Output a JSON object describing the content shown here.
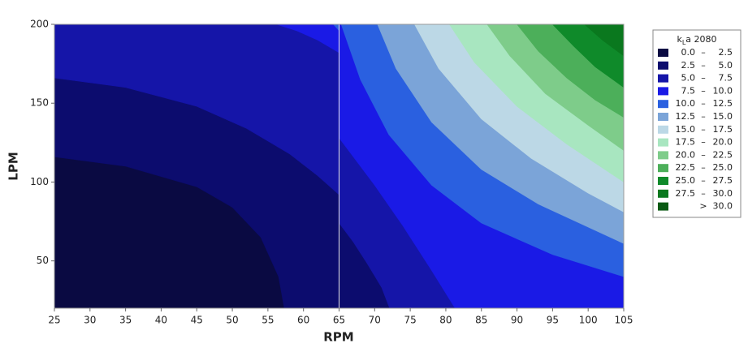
{
  "chart_data": {
    "type": "contour",
    "x_label": "RPM",
    "y_label": "LPM",
    "xlim": [
      25,
      105
    ],
    "ylim": [
      20,
      200
    ],
    "xticks": [
      25,
      30,
      35,
      40,
      45,
      50,
      55,
      60,
      65,
      70,
      75,
      80,
      85,
      90,
      95,
      100,
      105
    ],
    "yticks": [
      50,
      100,
      150,
      200
    ],
    "legend_title": {
      "main": "k",
      "sub": "L",
      "rest": "a 2080"
    },
    "separator": "–",
    "bands": [
      {
        "from": {
          "value": 0,
          "label": "0.0"
        },
        "to": {
          "value": 2.5,
          "label": "2.5"
        },
        "color": "#0a0a42"
      },
      {
        "from": {
          "value": 2.5,
          "label": "2.5"
        },
        "to": {
          "value": 5,
          "label": "5.0"
        },
        "color": "#0c0c6e"
      },
      {
        "from": {
          "value": 5,
          "label": "5.0"
        },
        "to": {
          "value": 7.5,
          "label": "7.5"
        },
        "color": "#1515a8"
      },
      {
        "from": {
          "value": 7.5,
          "label": "7.5"
        },
        "to": {
          "value": 10,
          "label": "10.0"
        },
        "color": "#1a1ae6"
      },
      {
        "from": {
          "value": 10,
          "label": "10.0"
        },
        "to": {
          "value": 12.5,
          "label": "12.5"
        },
        "color": "#2a60e0"
      },
      {
        "from": {
          "value": 12.5,
          "label": "12.5"
        },
        "to": {
          "value": 15,
          "label": "15.0"
        },
        "color": "#7ba4d8"
      },
      {
        "from": {
          "value": 15,
          "label": "15.0"
        },
        "to": {
          "value": 17.5,
          "label": "17.5"
        },
        "color": "#bcd8e6"
      },
      {
        "from": {
          "value": 17.5,
          "label": "17.5"
        },
        "to": {
          "value": 20,
          "label": "20.0"
        },
        "color": "#a8e6c0"
      },
      {
        "from": {
          "value": 20,
          "label": "20.0"
        },
        "to": {
          "value": 22.5,
          "label": "22.5"
        },
        "color": "#7ecc8a"
      },
      {
        "from": {
          "value": 22.5,
          "label": "22.5"
        },
        "to": {
          "value": 25,
          "label": "25.0"
        },
        "color": "#4caf5a"
      },
      {
        "from": {
          "value": 25,
          "label": "25.0"
        },
        "to": {
          "value": 27.5,
          "label": "27.5"
        },
        "color": "#0f8a2a"
      },
      {
        "from": {
          "value": 27.5,
          "label": "27.5"
        },
        "to": {
          "value": 30,
          "label": "30.0"
        },
        "color": "#0a781e"
      }
    ],
    "above": {
      "symbol": ">",
      "value": 30,
      "label": "30.0",
      "color": "#0a5a14"
    },
    "panels": [
      {
        "xrange": [
          25,
          65
        ],
        "contours": [
          {
            "level": 2.5,
            "x": [
              25,
              35,
              45,
              50,
              54,
              56.5,
              57.3
            ],
            "y": [
              116,
              110,
              97,
              84,
              65,
              40,
              20
            ]
          },
          {
            "level": 5,
            "x": [
              25,
              35,
              45,
              52,
              58,
              62,
              65
            ],
            "y": [
              166,
              160,
              148,
              134,
              118,
              104,
              92
            ]
          },
          {
            "level": 7.5,
            "x": [
              56.2,
              59,
              62,
              65
            ],
            "y": [
              200,
              196,
              190,
              182
            ]
          },
          {
            "level": 10,
            "x": [
              64.2,
              65
            ],
            "y": [
              200,
              196
            ]
          }
        ]
      },
      {
        "xrange": [
          65,
          105
        ],
        "contours": [
          {
            "level": 5,
            "x": [
              65,
              67,
              69,
              71,
              72.1
            ],
            "y": [
              74,
              62,
              48,
              33,
              20
            ]
          },
          {
            "level": 7.5,
            "x": [
              65,
              70,
              74,
              78,
              81.3
            ],
            "y": [
              128,
              98,
              72,
              44,
              20
            ]
          },
          {
            "level": 10,
            "x": [
              65.3,
              68,
              72,
              78,
              85,
              95,
              105
            ],
            "y": [
              200,
              165,
              130,
              98,
              74,
              54,
              40
            ]
          },
          {
            "level": 12.5,
            "x": [
              70.4,
              73,
              78,
              85,
              93,
              105
            ],
            "y": [
              200,
              172,
              138,
              108,
              86,
              61
            ]
          },
          {
            "level": 15,
            "x": [
              75.6,
              79,
              85,
              92,
              100,
              105
            ],
            "y": [
              200,
              172,
              140,
              115,
              93,
              81
            ]
          },
          {
            "level": 17.5,
            "x": [
              80.5,
              84,
              90,
              97,
              105
            ],
            "y": [
              200,
              176,
              148,
              124,
              100
            ]
          },
          {
            "level": 20,
            "x": [
              85.8,
              89,
              94,
              100,
              105
            ],
            "y": [
              200,
              180,
              156,
              136,
              120
            ]
          },
          {
            "level": 22.5,
            "x": [
              90,
              93,
              97,
              101,
              105
            ],
            "y": [
              200,
              183,
              166,
              152,
              141
            ]
          },
          {
            "level": 25,
            "x": [
              95,
              98,
              101,
              105
            ],
            "y": [
              200,
              186,
              173,
              160
            ]
          },
          {
            "level": 27.5,
            "x": [
              99.5,
              102,
              105
            ],
            "y": [
              200,
              190,
              180
            ]
          }
        ]
      }
    ]
  }
}
